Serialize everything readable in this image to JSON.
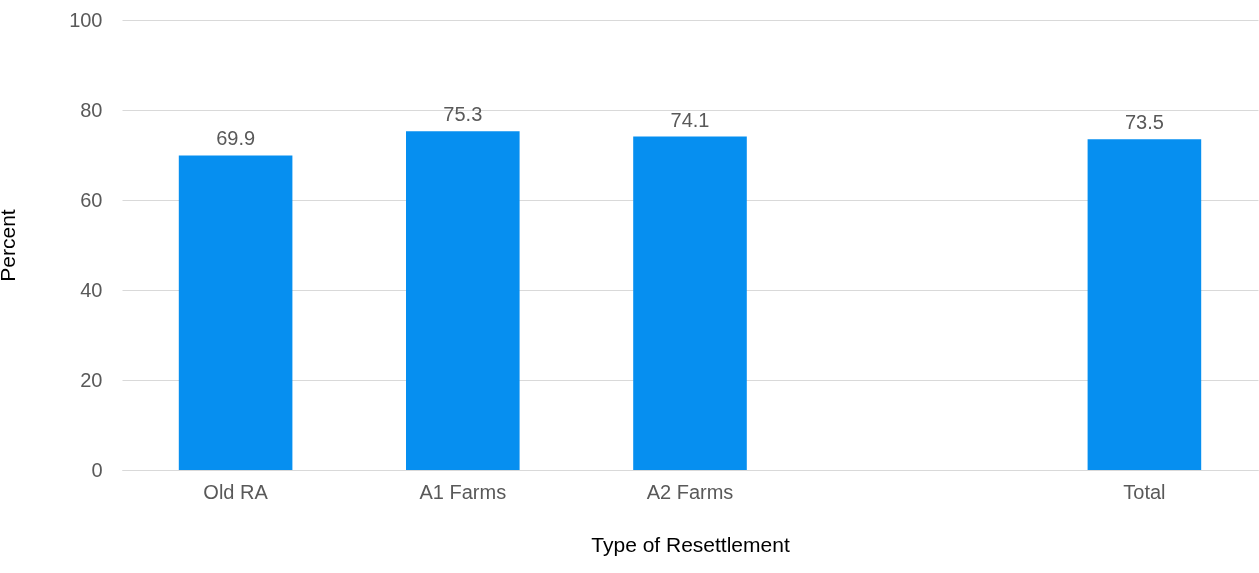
{
  "chart_data": {
    "type": "bar",
    "xlabel": "Type of Resettlement",
    "ylabel": "Percent",
    "categories": [
      "Old RA",
      "A1 Farms",
      "A2 Farms",
      null,
      "Total"
    ],
    "values": [
      69.9,
      75.3,
      74.1,
      null,
      73.5
    ],
    "color": "#068ff0",
    "ylim": [
      0,
      100
    ],
    "yticks": [
      0,
      20,
      40,
      60,
      80,
      100
    ],
    "grid": "y",
    "data_labels": true
  }
}
